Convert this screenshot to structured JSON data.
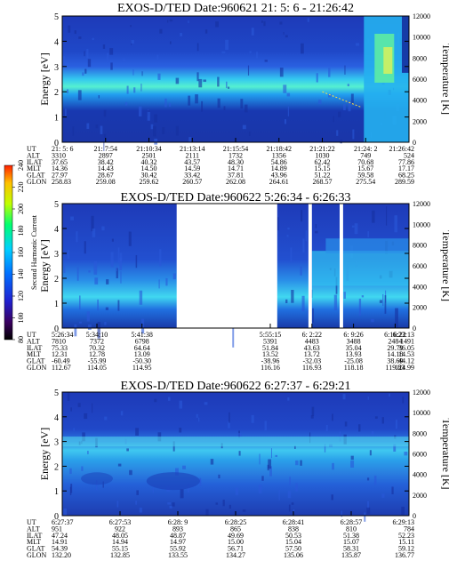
{
  "chart_data": [
    {
      "type": "heatmap",
      "title": "EXOS-D/TED",
      "date_label": "Date:960621",
      "time_range": "21: 5: 6 - 21:26:42",
      "ylabel": "Energy [eV]",
      "y2label": "Temperature [K]",
      "ylim": [
        0,
        5
      ],
      "y2lim": [
        0,
        12000
      ],
      "yticks": [
        "0",
        "1",
        "2",
        "3",
        "4",
        "5"
      ],
      "y2ticks": [
        "0",
        "2000",
        "4000",
        "6000",
        "8000",
        "10000",
        "12000"
      ],
      "row_labels": [
        "UT",
        "ALT",
        "ILAT",
        "MLT",
        "GLAT",
        "GLON"
      ],
      "columns": [
        [
          "21: 5: 6",
          "3310",
          "37.65",
          "14.36",
          "27.97",
          "258.83"
        ],
        [
          "21: 7:54",
          "2897",
          "38.42",
          "14.43",
          "28.67",
          "259.08"
        ],
        [
          "21:10:34",
          "2501",
          "40.32",
          "14.50",
          "30.42",
          "259.62"
        ],
        [
          "21:13:14",
          "2111",
          "43.57",
          "14.59",
          "33.42",
          "260.57"
        ],
        [
          "21:15:54",
          "1732",
          "48.30",
          "14.71",
          "37.81",
          "262.08"
        ],
        [
          "21:18:42",
          "1356",
          "54.86",
          "14.89",
          "43.96",
          "264.61"
        ],
        [
          "21:21:22",
          "1030",
          "62.42",
          "15.15",
          "51.22",
          "268.57"
        ],
        [
          "21:24: 2",
          "749",
          "70.68",
          "15.67",
          "59.58",
          "275.54"
        ],
        [
          "21:26:42",
          "524",
          "77.86",
          "17.17",
          "68.25",
          "289.59"
        ]
      ],
      "gaps": []
    },
    {
      "type": "heatmap",
      "title": "EXOS-D/TED",
      "date_label": "Date:960622",
      "time_range": "5:26:34 - 6:26:33",
      "ylabel": "Energy [eV]",
      "y2label": "Temperature [K]",
      "ylim": [
        0,
        5
      ],
      "y2lim": [
        0,
        12000
      ],
      "yticks": [
        "0",
        "1",
        "2",
        "3",
        "4",
        "5"
      ],
      "y2ticks": [
        "0",
        "2000",
        "4000",
        "6000",
        "8000",
        "10000",
        "12000"
      ],
      "row_labels": [
        "UT",
        "ALT",
        "ILAT",
        "MLT",
        "GLAT",
        "GLON"
      ],
      "columns": [
        [
          "5:26:34",
          "7810",
          "75.33",
          "12.31",
          "-60.49",
          "112.67"
        ],
        [
          "5:34:10",
          "7372",
          "70.32",
          "12.78",
          "-55.99",
          "114.05"
        ],
        [
          "5:41:38",
          "6798",
          "64.64",
          "13.09",
          "-50.30",
          "114.95"
        ],
        [
          "5:55:15",
          "5391",
          "51.84",
          "13.52",
          "-38.96",
          "116.16"
        ],
        [
          "6: 2:22",
          "4483",
          "43.63",
          "13.72",
          "-32.03",
          "116.93"
        ],
        [
          "6: 9:26",
          "3488",
          "35.04",
          "13.93",
          "-25.08",
          "118.18"
        ],
        [
          "6:16:22",
          "2484",
          "29.79",
          "14.18",
          "38.69",
          "119.83"
        ],
        [
          "6:23:13",
          "1491",
          "36.05",
          "14.53",
          "44.12",
          "124.99"
        ]
      ],
      "gaps": [
        [
          0.33,
          0.62
        ],
        [
          0.71,
          0.72
        ],
        [
          0.8,
          0.81
        ]
      ]
    },
    {
      "type": "heatmap",
      "title": "EXOS-D/TED",
      "date_label": "Date:960622",
      "time_range": "6:27:37 - 6:29:21",
      "ylabel": "Energy [eV]",
      "y2label": "Temperature [K]",
      "ylim": [
        0,
        5
      ],
      "y2lim": [
        0,
        12000
      ],
      "yticks": [
        "0",
        "1",
        "2",
        "3",
        "4",
        "5"
      ],
      "y2ticks": [
        "0",
        "2000",
        "4000",
        "6000",
        "8000",
        "10000",
        "12000"
      ],
      "row_labels": [
        "UT",
        "ALT",
        "ILAT",
        "MLT",
        "GLAT",
        "GLON"
      ],
      "columns": [
        [
          "6:27:37",
          "951",
          "47.24",
          "14.91",
          "54.39",
          "132.20"
        ],
        [
          "6:27:53",
          "922",
          "48.05",
          "14.94",
          "55.15",
          "132.85"
        ],
        [
          "6:28: 9",
          "893",
          "48.87",
          "14.97",
          "55.92",
          "133.55"
        ],
        [
          "6:28:25",
          "865",
          "49.69",
          "15.00",
          "56.71",
          "134.27"
        ],
        [
          "6:28:41",
          "838",
          "50.53",
          "15.04",
          "57.50",
          "135.06"
        ],
        [
          "6:28:57",
          "810",
          "51.38",
          "15.07",
          "58.31",
          "135.87"
        ],
        [
          "6:29:13",
          "784",
          "52.23",
          "15.11",
          "59.12",
          "136.77"
        ]
      ],
      "gaps": []
    }
  ],
  "colorbar": {
    "label": "Second Harmonic Current",
    "ticks": [
      "80",
      "100",
      "120",
      "140",
      "160",
      "180",
      "200",
      "220",
      "240"
    ],
    "range": [
      80,
      240
    ],
    "colors": [
      "#000000",
      "#3a0060",
      "#2020d0",
      "#0070ff",
      "#00d0ff",
      "#00ff70",
      "#c0ff00",
      "#ffc000",
      "#ff2000"
    ]
  }
}
